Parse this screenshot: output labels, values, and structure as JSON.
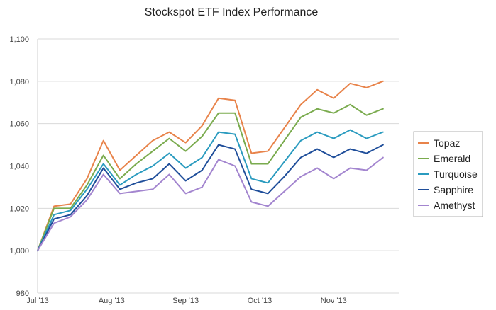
{
  "chart_data": {
    "type": "line",
    "title": "Stockspot ETF Index Performance",
    "xlabel": "",
    "ylabel": "",
    "ylim": [
      980,
      1100
    ],
    "yticks": [
      980,
      1000,
      1020,
      1040,
      1060,
      1080,
      1100
    ],
    "ytick_labels": [
      "980",
      "1,000",
      "1,020",
      "1,040",
      "1,060",
      "1,080",
      "1,100"
    ],
    "x": [
      0,
      1,
      2,
      3,
      4,
      5,
      6,
      7,
      8,
      9,
      10,
      11,
      12,
      13,
      14,
      15,
      16,
      17,
      18,
      19,
      20,
      21,
      22
    ],
    "xticks": [
      {
        "pos": 0,
        "label": "Jul '13"
      },
      {
        "pos": 4.5,
        "label": "Aug '13"
      },
      {
        "pos": 9.0,
        "label": "Sep '13"
      },
      {
        "pos": 13.5,
        "label": "Oct '13"
      },
      {
        "pos": 18.0,
        "label": "Nov '13"
      }
    ],
    "grid": true,
    "legend_position": "right",
    "series": [
      {
        "name": "Topaz",
        "color": "#e8834a",
        "values": [
          1000,
          1021,
          1022,
          1034,
          1052,
          1038,
          1045,
          1052,
          1056,
          1051,
          1059,
          1072,
          1071,
          1046,
          1047,
          1058,
          1069,
          1076,
          1072,
          1079,
          1077,
          1080,
          null
        ]
      },
      {
        "name": "Emerald",
        "color": "#7aab4e",
        "values": [
          1000,
          1020,
          1020,
          1031,
          1045,
          1034,
          1041,
          1047,
          1053,
          1047,
          1054,
          1065,
          1065,
          1041,
          1041,
          1052,
          1063,
          1067,
          1065,
          1069,
          1064,
          1067,
          null
        ]
      },
      {
        "name": "Turquoise",
        "color": "#2a9bbf",
        "values": [
          1000,
          1017,
          1019,
          1029,
          1041,
          1031,
          1036,
          1040,
          1046,
          1039,
          1044,
          1056,
          1055,
          1034,
          1032,
          1042,
          1052,
          1056,
          1053,
          1057,
          1053,
          1056,
          null
        ]
      },
      {
        "name": "Sapphire",
        "color": "#1f4e9a",
        "values": [
          1000,
          1015,
          1017,
          1026,
          1039,
          1029,
          1032,
          1034,
          1041,
          1033,
          1038,
          1050,
          1048,
          1029,
          1027,
          1035,
          1044,
          1048,
          1044,
          1048,
          1046,
          1050,
          null
        ]
      },
      {
        "name": "Amethyst",
        "color": "#a385cf",
        "values": [
          1000,
          1013,
          1016,
          1024,
          1036,
          1027,
          1028,
          1029,
          1036,
          1027,
          1030,
          1043,
          1040,
          1023,
          1021,
          1028,
          1035,
          1039,
          1034,
          1039,
          1038,
          1044,
          null
        ]
      }
    ]
  }
}
